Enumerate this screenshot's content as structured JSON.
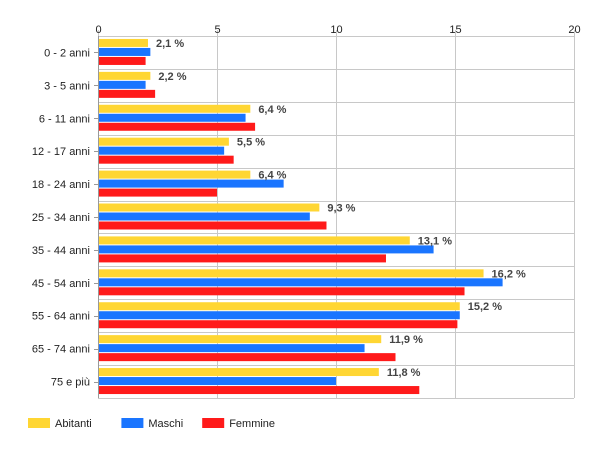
{
  "chart_data": {
    "type": "bar",
    "orientation": "horizontal",
    "categories": [
      "0 - 2 anni",
      "3 - 5 anni",
      "6 - 11 anni",
      "12 - 17 anni",
      "18 - 24 anni",
      "25 - 34 anni",
      "35 - 44 anni",
      "45 - 54 anni",
      "55 - 64 anni",
      "65 - 74 anni",
      "75 e più"
    ],
    "series": [
      {
        "name": "Abitanti",
        "color": "#FFD633",
        "values": [
          2.1,
          2.2,
          6.4,
          5.5,
          6.4,
          9.3,
          13.1,
          16.2,
          15.2,
          11.9,
          11.8
        ]
      },
      {
        "name": "Maschi",
        "color": "#1A75FF",
        "values": [
          2.2,
          2.0,
          6.2,
          5.3,
          7.8,
          8.9,
          14.1,
          17.0,
          15.2,
          11.2,
          10.0
        ]
      },
      {
        "name": "Femmine",
        "color": "#FF1A1A",
        "values": [
          2.0,
          2.4,
          6.6,
          5.7,
          5.0,
          9.6,
          12.1,
          15.4,
          15.1,
          12.5,
          13.5
        ]
      }
    ],
    "data_labels": [
      "2,1 %",
      "2,2 %",
      "6,4 %",
      "5,5 %",
      "6,4 %",
      "9,3 %",
      "13,1 %",
      "16,2 %",
      "15,2 %",
      "11,9 %",
      "11,8 %"
    ],
    "xlim": [
      0,
      20
    ],
    "xticks": [
      0,
      5,
      10,
      15,
      20
    ],
    "x_axis_position": "top",
    "grid": true,
    "legend": "bottom-left",
    "title": "",
    "xlabel": "",
    "ylabel": ""
  }
}
